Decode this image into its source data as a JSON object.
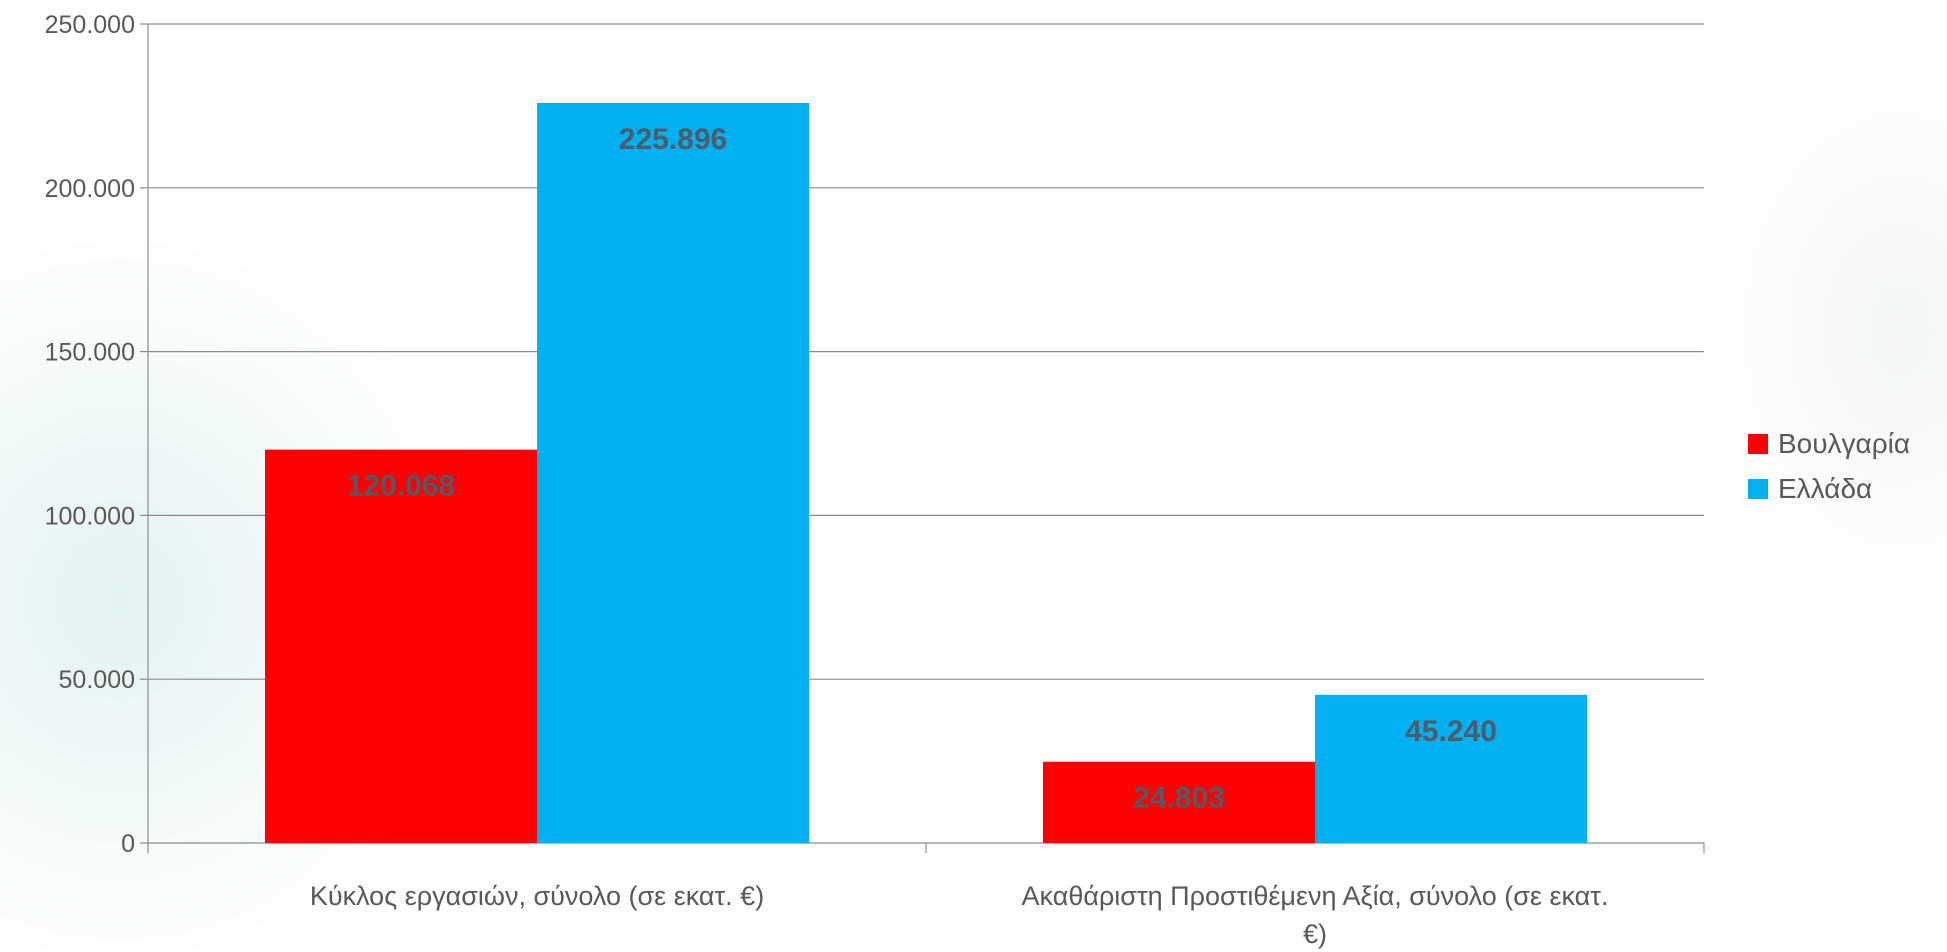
{
  "chart_data": {
    "type": "bar",
    "categories": [
      "Κύκλος εργασιών, σύνολο (σε εκατ. €)",
      "Ακαθάριστη Προστιθέμενη Αξία, σύνολο (σε εκατ. €)"
    ],
    "category_lines": [
      [
        "Κύκλος εργασιών, σύνολο (σε εκατ. €)"
      ],
      [
        "Ακαθάριστη Προστιθέμενη Αξία, σύνολο (σε εκατ.",
        "€)"
      ]
    ],
    "series": [
      {
        "name": "Βουλγαρία",
        "color": "#ff0000",
        "values": [
          120068,
          24803
        ],
        "labels": [
          "120.068",
          "24.803"
        ]
      },
      {
        "name": "Ελλάδα",
        "color": "#00b0f0",
        "values": [
          225896,
          45240
        ],
        "labels": [
          "225.896",
          "45.240"
        ]
      }
    ],
    "ylim": [
      0,
      250000
    ],
    "yticks": [
      {
        "value": 0,
        "label": "0"
      },
      {
        "value": 50000,
        "label": "50.000"
      },
      {
        "value": 100000,
        "label": "100.000"
      },
      {
        "value": 150000,
        "label": "150.000"
      },
      {
        "value": 200000,
        "label": "200.000"
      },
      {
        "value": 250000,
        "label": "250.000"
      }
    ],
    "grid": true,
    "legend_position": "right",
    "title": "",
    "xlabel": "",
    "ylabel": ""
  }
}
